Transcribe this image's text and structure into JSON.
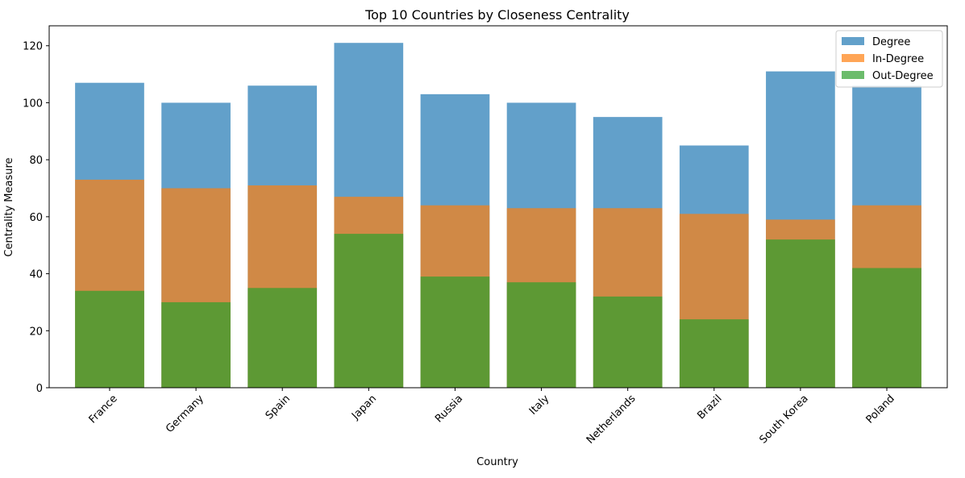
{
  "chart_data": {
    "type": "bar",
    "title": "Top 10 Countries by Closeness Centrality",
    "xlabel": "Country",
    "ylabel": "Centrality Measure",
    "categories": [
      "France",
      "Germany",
      "Spain",
      "Japan",
      "Russia",
      "Italy",
      "Netherlands",
      "Brazil",
      "South Korea",
      "Poland"
    ],
    "series": [
      {
        "name": "Degree",
        "color": "#1f77b4",
        "opacity": 0.7,
        "values": [
          107,
          100,
          106,
          121,
          103,
          100,
          95,
          85,
          111,
          106
        ]
      },
      {
        "name": "In-Degree",
        "color": "#ff7f0e",
        "opacity": 0.7,
        "values": [
          73,
          70,
          71,
          67,
          64,
          63,
          63,
          61,
          59,
          64
        ]
      },
      {
        "name": "Out-Degree",
        "color": "#2ca02c",
        "opacity": 0.7,
        "values": [
          34,
          30,
          35,
          54,
          39,
          37,
          32,
          24,
          52,
          42
        ]
      }
    ],
    "ylim": [
      0,
      127
    ],
    "yticks": [
      0,
      20,
      40,
      60,
      80,
      100,
      120
    ],
    "overlay": true,
    "grid": false,
    "legend_position": "top-right"
  }
}
